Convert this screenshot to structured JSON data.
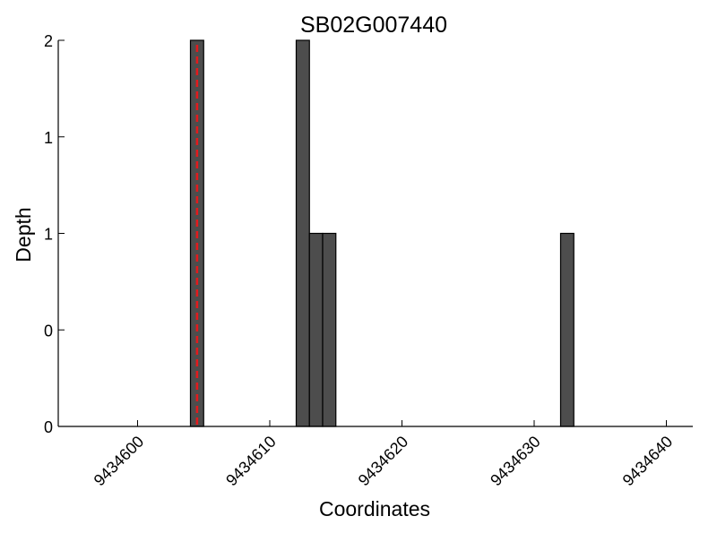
{
  "chart_data": {
    "type": "bar",
    "title": "SB02G007440",
    "x_label": "Coordinates",
    "y_label": "Depth",
    "x": [
      9434604,
      9434612,
      9434613,
      9434614,
      9434632
    ],
    "values": [
      2,
      2,
      1,
      1,
      1
    ],
    "color": "#4d4d4d",
    "xlim": [
      9434594,
      9434642
    ],
    "xticks": [
      9434600,
      9434610,
      9434620,
      9434630,
      9434640
    ],
    "ylim": [
      0,
      2
    ],
    "yticks": [
      {
        "value": 0,
        "label": "0"
      },
      {
        "value": 0.5,
        "label": "0"
      },
      {
        "value": 1,
        "label": "1"
      },
      {
        "value": 1.5,
        "label": "1"
      },
      {
        "value": 2,
        "label": "2"
      }
    ],
    "marker_line": {
      "x": 9434604.5,
      "color": "#e41a1c"
    }
  }
}
